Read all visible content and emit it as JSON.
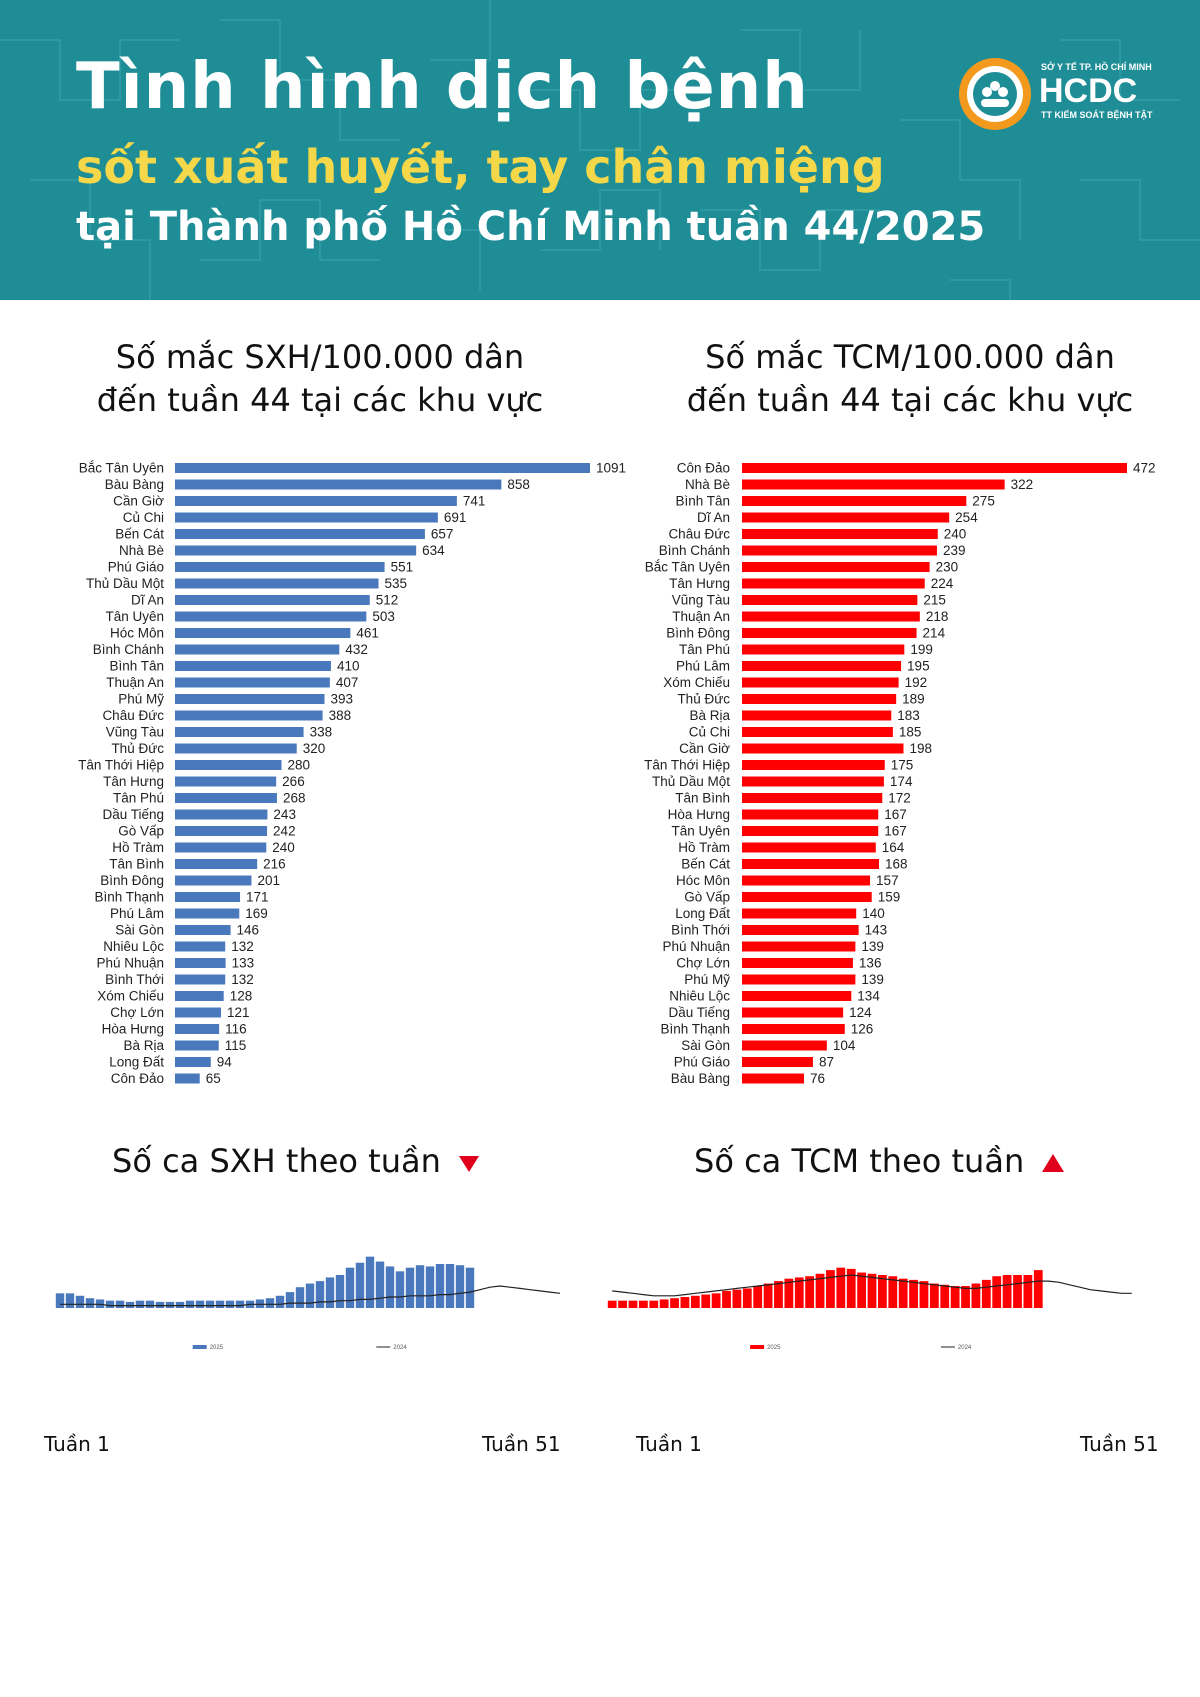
{
  "header": {
    "title_line1": "Tình hình dịch bệnh",
    "title_line2": "sốt xuất huyết, tay chân miệng",
    "title_line3": "tại Thành phố Hồ Chí Minh tuần 44/2025",
    "logo": {
      "org": "SỞ Y TẾ TP. HỒ CHÍ MINH",
      "name": "HCDC",
      "sub": "TT KIỂM SOÁT BỆNH TẬT"
    }
  },
  "colors": {
    "header_bg": "#1e8d96",
    "accent_yellow": "#f5d84a",
    "sxh_bar": "#4a78bd",
    "tcm_bar": "#ff0000",
    "trend_down": "#e0001b",
    "trend_up": "#e0001b"
  },
  "sxh_section": {
    "title_line1": "Số mắc SXH/100.000 dân",
    "title_line2": "đến tuần 44 tại các khu vực",
    "weekly_title": "Số ca SXH theo tuần",
    "trend_icon": "triangle-down-icon"
  },
  "tcm_section": {
    "title_line1": "Số mắc TCM/100.000 dân",
    "title_line2": "đến tuần 44 tại các khu vực",
    "weekly_title": "Số ca TCM theo tuần",
    "trend_icon": "triangle-up-icon"
  },
  "weekly_axis": {
    "start_label": "Tuần 1",
    "end_label": "Tuần 51"
  },
  "chart_data": [
    {
      "id": "sxh_rate",
      "type": "bar",
      "orientation": "horizontal",
      "title": "Số mắc SXH/100.000 dân đến tuần 44 tại các khu vực",
      "categories": [
        "Bắc Tân Uyên",
        "Bàu Bàng",
        "Cần Giờ",
        "Củ Chi",
        "Bến Cát",
        "Nhà Bè",
        "Phú Giáo",
        "Thủ Dầu Một",
        "Dĩ An",
        "Tân Uyên",
        "Hóc Môn",
        "Bình Chánh",
        "Bình Tân",
        "Thuận An",
        "Phú Mỹ",
        "Châu Đức",
        "Vũng Tàu",
        "Thủ Đức",
        "Tân Thới Hiệp",
        "Tân Hưng",
        "Tân Phú",
        "Dầu Tiếng",
        "Gò Vấp",
        "Hồ Tràm",
        "Tân Bình",
        "Bình Đông",
        "Bình Thạnh",
        "Phú Lâm",
        "Sài Gòn",
        "Nhiêu Lộc",
        "Phú Nhuận",
        "Bình Thới",
        "Xóm Chiếu",
        "Chợ Lớn",
        "Hòa Hưng",
        "Bà Rịa",
        "Long Đất",
        "Côn Đảo"
      ],
      "values": [
        1091,
        858,
        741,
        691,
        657,
        634,
        551,
        535,
        512,
        503,
        461,
        432,
        410,
        407,
        393,
        388,
        338,
        320,
        280,
        266,
        268,
        243,
        242,
        240,
        216,
        201,
        171,
        169,
        146,
        132,
        133,
        132,
        128,
        121,
        116,
        115,
        94,
        65
      ],
      "xlim": [
        0,
        1091
      ],
      "color": "#4a78bd"
    },
    {
      "id": "tcm_rate",
      "type": "bar",
      "orientation": "horizontal",
      "title": "Số mắc TCM/100.000 dân đến tuần 44 tại các khu vực",
      "categories": [
        "Côn Đảo",
        "Nhà Bè",
        "Bình Tân",
        "Dĩ An",
        "Châu Đức",
        "Bình Chánh",
        "Bắc Tân Uyên",
        "Tân Hưng",
        "Vũng Tàu",
        "Thuận An",
        "Bình Đông",
        "Tân Phú",
        "Phú Lâm",
        "Xóm Chiếu",
        "Thủ Đức",
        "Bà Rịa",
        "Củ Chi",
        "Cần Giờ",
        "Tân Thới Hiệp",
        "Thủ Dầu Một",
        "Tân Bình",
        "Hòa Hưng",
        "Tân Uyên",
        "Hồ Tràm",
        "Bến Cát",
        "Hóc Môn",
        "Gò Vấp",
        "Long Đất",
        "Bình Thới",
        "Phú Nhuận",
        "Chợ Lớn",
        "Phú Mỹ",
        "Nhiêu Lộc",
        "Dầu Tiếng",
        "Bình Thạnh",
        "Sài Gòn",
        "Phú Giáo",
        "Bàu Bàng"
      ],
      "values": [
        472,
        322,
        275,
        254,
        240,
        239,
        230,
        224,
        215,
        218,
        214,
        199,
        195,
        192,
        189,
        183,
        185,
        198,
        175,
        174,
        172,
        167,
        167,
        164,
        168,
        157,
        159,
        140,
        143,
        139,
        136,
        139,
        134,
        124,
        126,
        104,
        87,
        76
      ],
      "xlim": [
        0,
        472
      ],
      "color": "#ff0000"
    },
    {
      "id": "sxh_weekly",
      "type": "bar",
      "title": "Số ca SXH theo tuần",
      "x_start": "Tuần 1",
      "x_end": "Tuần 51",
      "series": [
        {
          "name": "2025",
          "kind": "bar",
          "color": "#4a78bd",
          "values": [
            12,
            12,
            10,
            8,
            7,
            6,
            6,
            5,
            6,
            6,
            5,
            5,
            5,
            6,
            6,
            6,
            6,
            6,
            6,
            6,
            7,
            8,
            10,
            13,
            17,
            20,
            22,
            25,
            27,
            33,
            37,
            42,
            38,
            34,
            30,
            33,
            35,
            34,
            36,
            36,
            35,
            33
          ]
        },
        {
          "name": "2024",
          "kind": "line",
          "color": "#222222",
          "values": [
            3,
            3,
            3,
            3,
            3,
            2,
            2,
            2,
            2,
            2,
            2,
            2,
            2,
            2,
            2,
            2,
            2,
            2,
            2,
            3,
            3,
            3,
            3,
            4,
            4,
            4,
            5,
            5,
            6,
            6,
            7,
            7,
            8,
            9,
            9,
            10,
            10,
            10,
            11,
            11,
            12,
            13,
            15,
            17,
            18,
            17,
            16,
            15,
            14,
            13,
            12
          ]
        }
      ],
      "legend": [
        "2025",
        "2024"
      ],
      "trend": "down"
    },
    {
      "id": "tcm_weekly",
      "type": "bar",
      "title": "Số ca TCM theo tuần",
      "x_start": "Tuần 1",
      "x_end": "Tuần 51",
      "series": [
        {
          "name": "2025",
          "kind": "bar",
          "color": "#ff0000",
          "values": [
            6,
            6,
            6,
            6,
            6,
            7,
            8,
            9,
            10,
            11,
            12,
            14,
            15,
            16,
            18,
            20,
            22,
            24,
            25,
            26,
            28,
            31,
            33,
            32,
            29,
            28,
            27,
            26,
            24,
            23,
            22,
            20,
            19,
            18,
            18,
            20,
            23,
            26,
            27,
            27,
            27,
            31
          ]
        },
        {
          "name": "2024",
          "kind": "line",
          "color": "#222222",
          "values": [
            14,
            13,
            12,
            11,
            10,
            10,
            10,
            11,
            12,
            13,
            14,
            15,
            16,
            17,
            18,
            19,
            20,
            21,
            22,
            23,
            24,
            25,
            26,
            27,
            26,
            25,
            24,
            23,
            22,
            21,
            20,
            19,
            18,
            17,
            16,
            16,
            17,
            18,
            19,
            20,
            21,
            22,
            22,
            21,
            19,
            17,
            15,
            14,
            13,
            12,
            12
          ]
        }
      ],
      "legend": [
        "2025",
        "2024"
      ],
      "trend": "up"
    }
  ]
}
